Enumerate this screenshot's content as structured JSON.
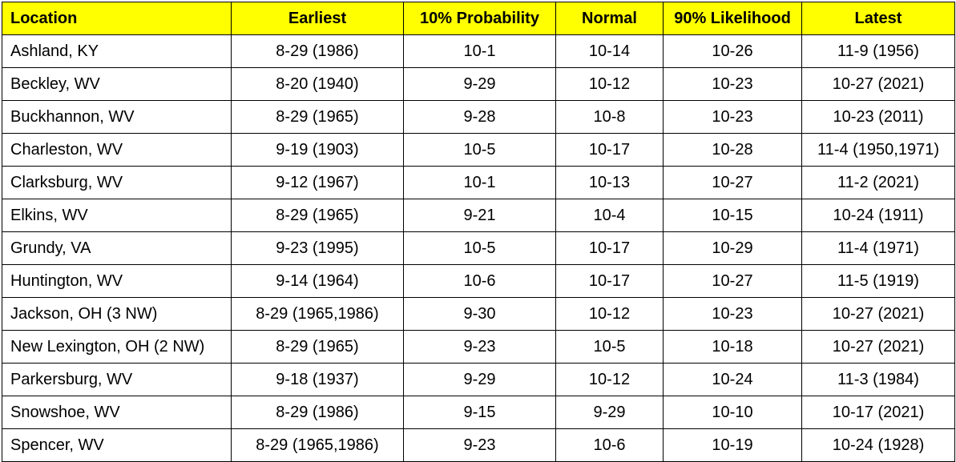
{
  "headers": {
    "location": "Location",
    "earliest": "Earliest",
    "p10": "10% Probability",
    "normal": "Normal",
    "p90": "90% Likelihood",
    "latest": "Latest"
  },
  "rows": [
    {
      "location": "Ashland, KY",
      "earliest": "8-29 (1986)",
      "p10": "10-1",
      "normal": "10-14",
      "p90": "10-26",
      "latest": "11-9 (1956)"
    },
    {
      "location": "Beckley, WV",
      "earliest": "8-20 (1940)",
      "p10": "9-29",
      "normal": "10-12",
      "p90": "10-23",
      "latest": "10-27 (2021)"
    },
    {
      "location": "Buckhannon, WV",
      "earliest": "8-29 (1965)",
      "p10": "9-28",
      "normal": "10-8",
      "p90": "10-23",
      "latest": "10-23 (2011)"
    },
    {
      "location": "Charleston, WV",
      "earliest": "9-19 (1903)",
      "p10": "10-5",
      "normal": "10-17",
      "p90": "10-28",
      "latest": "11-4 (1950,1971)"
    },
    {
      "location": "Clarksburg, WV",
      "earliest": "9-12 (1967)",
      "p10": "10-1",
      "normal": "10-13",
      "p90": "10-27",
      "latest": "11-2 (2021)"
    },
    {
      "location": "Elkins, WV",
      "earliest": "8-29 (1965)",
      "p10": "9-21",
      "normal": "10-4",
      "p90": "10-15",
      "latest": "10-24 (1911)"
    },
    {
      "location": "Grundy, VA",
      "earliest": "9-23 (1995)",
      "p10": "10-5",
      "normal": "10-17",
      "p90": "10-29",
      "latest": "11-4 (1971)"
    },
    {
      "location": "Huntington, WV",
      "earliest": "9-14 (1964)",
      "p10": "10-6",
      "normal": "10-17",
      "p90": "10-27",
      "latest": "11-5 (1919)"
    },
    {
      "location": "Jackson, OH (3 NW)",
      "earliest": "8-29 (1965,1986)",
      "p10": "9-30",
      "normal": "10-12",
      "p90": "10-23",
      "latest": "10-27 (2021)"
    },
    {
      "location": "New Lexington, OH (2 NW)",
      "earliest": "8-29 (1965)",
      "p10": "9-23",
      "normal": "10-5",
      "p90": "10-18",
      "latest": "10-27 (2021)"
    },
    {
      "location": "Parkersburg, WV",
      "earliest": "9-18 (1937)",
      "p10": "9-29",
      "normal": "10-12",
      "p90": "10-24",
      "latest": "11-3 (1984)"
    },
    {
      "location": "Snowshoe, WV",
      "earliest": "8-29 (1986)",
      "p10": "9-15",
      "normal": "9-29",
      "p90": "10-10",
      "latest": "10-17 (2021)"
    },
    {
      "location": "Spencer, WV",
      "earliest": "8-29 (1965,1986)",
      "p10": "9-23",
      "normal": "10-6",
      "p90": "10-19",
      "latest": "10-24 (1928)"
    }
  ],
  "colors": {
    "header_background": "#ffff00",
    "border": "#000000",
    "text": "#000000"
  }
}
